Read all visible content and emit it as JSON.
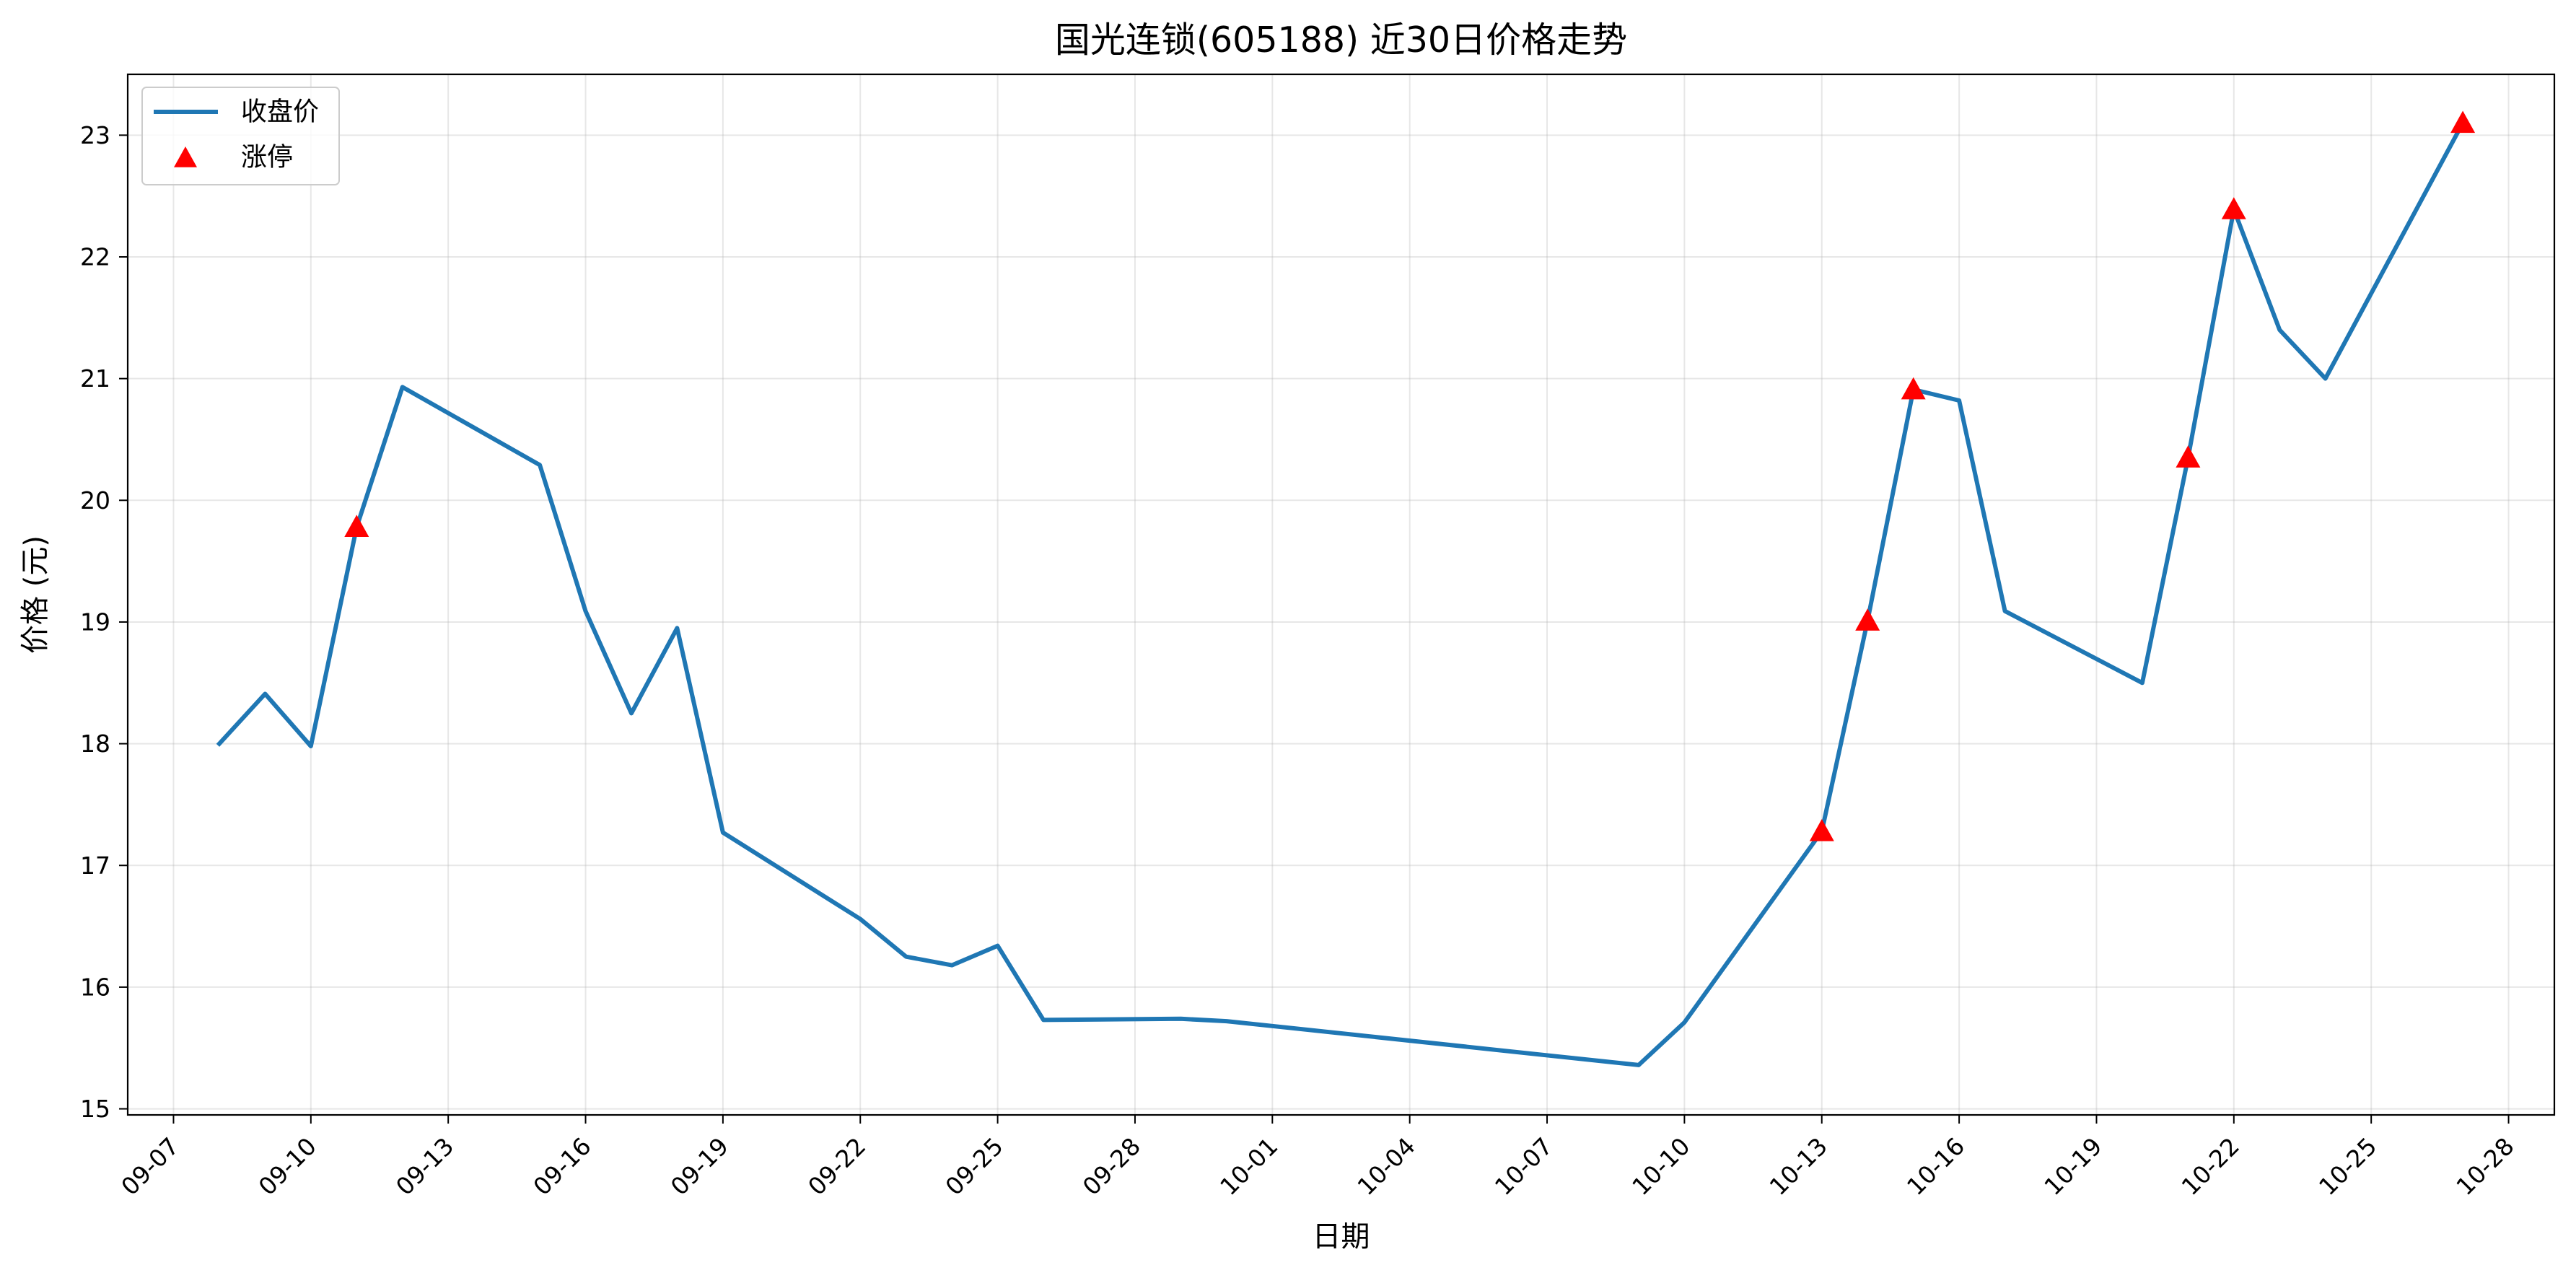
{
  "chart_data": {
    "type": "line",
    "title": "国光连锁(605188) 近30日价格走势",
    "xlabel": "日期",
    "ylabel": "价格 (元)",
    "x_range": [
      "2025-09-06",
      "2025-10-29"
    ],
    "ylim": [
      14.95,
      23.5
    ],
    "x_ticks": [
      "2025-09-07",
      "2025-09-10",
      "2025-09-13",
      "2025-09-16",
      "2025-09-19",
      "2025-09-22",
      "2025-09-25",
      "2025-09-28",
      "2025-10-01",
      "2025-10-04",
      "2025-10-07",
      "2025-10-10",
      "2025-10-13",
      "2025-10-16",
      "2025-10-19",
      "2025-10-22",
      "2025-10-25",
      "2025-10-28"
    ],
    "x_tick_labels": [
      "09-07",
      "09-10",
      "09-13",
      "09-16",
      "09-19",
      "09-22",
      "09-25",
      "09-28",
      "10-01",
      "10-04",
      "10-07",
      "10-10",
      "10-13",
      "10-16",
      "10-19",
      "10-22",
      "10-25",
      "10-28"
    ],
    "y_ticks": [
      15,
      16,
      17,
      18,
      19,
      20,
      21,
      22,
      23
    ],
    "y_tick_labels": [
      "15",
      "16",
      "17",
      "18",
      "19",
      "20",
      "21",
      "22",
      "23"
    ],
    "grid": true,
    "legend_position": "upper-left",
    "series": [
      {
        "name": "收盘价",
        "kind": "line",
        "color": "#1f77b4",
        "x": [
          "2025-09-08",
          "2025-09-09",
          "2025-09-10",
          "2025-09-11",
          "2025-09-12",
          "2025-09-15",
          "2025-09-16",
          "2025-09-17",
          "2025-09-18",
          "2025-09-19",
          "2025-09-22",
          "2025-09-23",
          "2025-09-24",
          "2025-09-25",
          "2025-09-26",
          "2025-09-29",
          "2025-09-30",
          "2025-10-09",
          "2025-10-10",
          "2025-10-13",
          "2025-10-14",
          "2025-10-15",
          "2025-10-16",
          "2025-10-17",
          "2025-10-20",
          "2025-10-21",
          "2025-10-22",
          "2025-10-23",
          "2025-10-24",
          "2025-10-27"
        ],
        "values": [
          18.0,
          18.41,
          17.98,
          19.78,
          20.93,
          20.29,
          19.09,
          18.25,
          18.95,
          17.27,
          16.56,
          16.25,
          16.18,
          16.34,
          15.73,
          15.74,
          15.72,
          15.36,
          15.71,
          17.28,
          19.01,
          20.91,
          20.82,
          19.09,
          18.5,
          20.35,
          22.39,
          21.4,
          21.0,
          23.1
        ]
      },
      {
        "name": "涨停",
        "kind": "marker",
        "color": "#ff0000",
        "marker": "triangle-up",
        "x": [
          "2025-09-11",
          "2025-10-13",
          "2025-10-14",
          "2025-10-15",
          "2025-10-21",
          "2025-10-22",
          "2025-10-27"
        ],
        "values": [
          19.78,
          17.28,
          19.01,
          20.91,
          20.35,
          22.39,
          23.1
        ]
      }
    ]
  }
}
